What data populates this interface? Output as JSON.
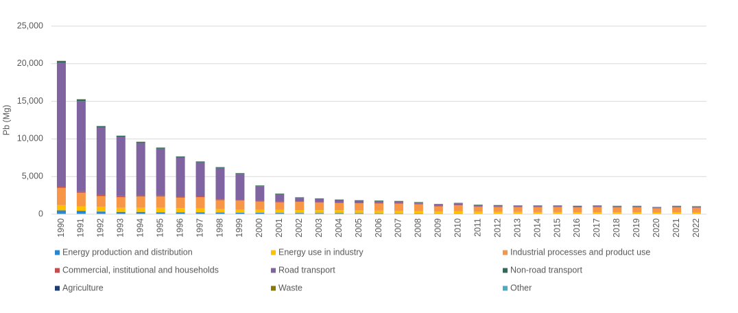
{
  "chart_data": {
    "type": "stacked_bar",
    "y_label": "Pb (Mg)",
    "categories": [
      "1990",
      "1991",
      "1992",
      "1993",
      "1994",
      "1995",
      "1996",
      "1997",
      "1998",
      "1999",
      "2000",
      "2001",
      "2002",
      "2003",
      "2004",
      "2005",
      "2006",
      "2007",
      "2008",
      "2009",
      "2010",
      "2011",
      "2012",
      "2013",
      "2014",
      "2015",
      "2016",
      "2017",
      "2018",
      "2019",
      "2020",
      "2021",
      "2022"
    ],
    "series": [
      {
        "name": "Energy production and distribution",
        "color": "#2a86cf",
        "values": [
          500,
          450,
          350,
          300,
          300,
          250,
          250,
          250,
          220,
          200,
          180,
          170,
          160,
          150,
          140,
          130,
          120,
          110,
          100,
          80,
          80,
          70,
          60,
          60,
          50,
          50,
          50,
          50,
          50,
          40,
          40,
          40,
          40
        ]
      },
      {
        "name": "Energy use in industry",
        "color": "#ffc000",
        "values": [
          700,
          600,
          650,
          550,
          550,
          600,
          550,
          500,
          450,
          400,
          400,
          400,
          380,
          380,
          380,
          360,
          350,
          340,
          320,
          260,
          300,
          260,
          250,
          240,
          230,
          230,
          220,
          220,
          220,
          210,
          190,
          200,
          190
        ]
      },
      {
        "name": "Industrial processes and product use",
        "color": "#f79646",
        "values": [
          2300,
          1800,
          1400,
          1400,
          1500,
          1500,
          1400,
          1500,
          1200,
          1200,
          1100,
          1000,
          1100,
          1000,
          950,
          950,
          950,
          950,
          900,
          700,
          800,
          650,
          650,
          620,
          640,
          650,
          620,
          650,
          620,
          640,
          520,
          650,
          600
        ]
      },
      {
        "name": "Commercial, institutional and households",
        "color": "#c0504d",
        "values": [
          200,
          180,
          160,
          150,
          150,
          140,
          130,
          120,
          110,
          100,
          90,
          80,
          80,
          80,
          70,
          70,
          70,
          70,
          60,
          60,
          60,
          60,
          60,
          60,
          60,
          60,
          60,
          60,
          60,
          60,
          50,
          60,
          60
        ]
      },
      {
        "name": "Road transport",
        "color": "#8064a2",
        "values": [
          16400,
          12000,
          8950,
          7850,
          6950,
          6200,
          5200,
          4500,
          4150,
          3450,
          1950,
          1000,
          440,
          400,
          330,
          270,
          240,
          210,
          160,
          190,
          200,
          150,
          120,
          110,
          110,
          100,
          100,
          110,
          90,
          90,
          90,
          90,
          100
        ]
      },
      {
        "name": "Non-road transport",
        "color": "#2f6b5d",
        "values": [
          250,
          220,
          180,
          160,
          150,
          140,
          120,
          110,
          100,
          80,
          70,
          60,
          60,
          60,
          50,
          50,
          50,
          50,
          40,
          40,
          40,
          40,
          40,
          40,
          40,
          40,
          40,
          40,
          40,
          40,
          40,
          40,
          40
        ]
      },
      {
        "name": "Agriculture",
        "color": "#1f3d73",
        "values": [
          10,
          10,
          10,
          10,
          10,
          10,
          10,
          10,
          10,
          10,
          10,
          10,
          10,
          10,
          10,
          10,
          10,
          10,
          10,
          10,
          10,
          10,
          10,
          10,
          10,
          10,
          10,
          10,
          10,
          10,
          10,
          10,
          10
        ]
      },
      {
        "name": "Waste",
        "color": "#8a7a00",
        "values": [
          20,
          20,
          20,
          20,
          20,
          20,
          20,
          20,
          20,
          20,
          20,
          20,
          20,
          20,
          20,
          20,
          20,
          20,
          20,
          20,
          20,
          20,
          20,
          20,
          20,
          20,
          20,
          20,
          20,
          20,
          20,
          20,
          20
        ]
      },
      {
        "name": "Other",
        "color": "#4bacc6",
        "values": [
          10,
          10,
          10,
          10,
          10,
          10,
          10,
          10,
          10,
          10,
          10,
          10,
          10,
          10,
          10,
          10,
          10,
          10,
          10,
          10,
          10,
          10,
          10,
          10,
          10,
          10,
          10,
          10,
          10,
          10,
          10,
          10,
          10
        ]
      }
    ],
    "ylim": [
      0,
      25000
    ],
    "yticks": [
      0,
      {
        "value": 5000,
        "label": "5,000"
      },
      {
        "value": 10000,
        "label": "10,000"
      },
      {
        "value": 15000,
        "label": "15,000"
      },
      {
        "value": 20000,
        "label": "20,000"
      },
      {
        "value": 25000,
        "label": "25,000"
      }
    ],
    "grid": true,
    "legend": "bottom"
  }
}
